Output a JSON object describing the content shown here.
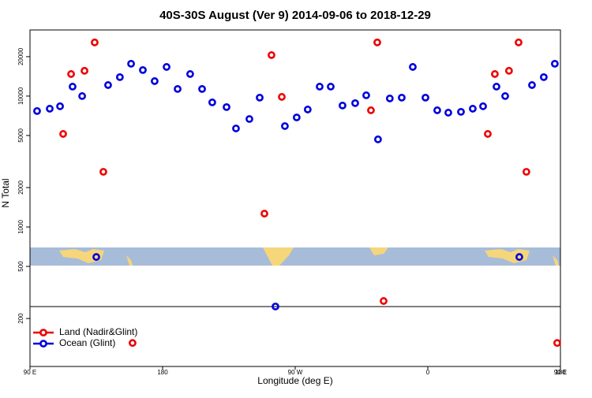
{
  "chart_data": {
    "type": "scatter",
    "title": "40S-30S August (Ver 9)   2014-09-06 to 2018-12-29",
    "xlabel": "Longitude (deg E)",
    "ylabel": "N Total",
    "xlim": [
      90,
      450
    ],
    "ylim": [
      86,
      32000
    ],
    "ylog": true,
    "legend": "bottom-left",
    "xticks": [
      {
        "value": 90,
        "label": "90 E"
      },
      180,
      {
        "value": 270,
        "label": "90 W"
      },
      {
        "value": 360,
        "label": "0"
      },
      {
        "value": 450,
        "label": "90 E"
      },
      {
        "value": 540,
        "label": "180"
      }
    ],
    "yticks": [
      200,
      500,
      1000,
      2000,
      5000,
      10000,
      20000
    ],
    "series": [
      {
        "name": "Land (Nadir&Glint)",
        "color": "#ee0000",
        "x": [
          112.5,
          117.9,
          127,
          133.9,
          139.8,
          159.6,
          249.1,
          253.9,
          260.9,
          321.4,
          325.7,
          330,
          400.7,
          405.5,
          415.1,
          421.6,
          426.9,
          447.8
        ],
        "values": [
          5140,
          14740,
          15600,
          25700,
          2640,
          130,
          1265,
          20560,
          9860,
          7790,
          25700,
          272,
          5140,
          14740,
          15600,
          25700,
          2640,
          130
        ]
      },
      {
        "name": "Ocean (Glint)",
        "color": "#0000dd",
        "x": [
          94.8,
          103.4,
          110.4,
          118.9,
          125.4,
          135,
          143,
          151,
          158.6,
          166.6,
          174.6,
          182.7,
          190.2,
          198.7,
          206.8,
          213.7,
          223.4,
          229.8,
          238.9,
          245.9,
          256.6,
          263,
          271,
          278.5,
          286.6,
          294.1,
          302.1,
          310.7,
          318.2,
          326.2,
          334.2,
          342.3,
          349.8,
          358.4,
          366.4,
          373.9,
          382.5,
          390.5,
          397.5,
          406.6,
          412.5,
          422.1,
          430.7,
          438.7,
          446.2
        ],
        "values": [
          7690,
          8010,
          8360,
          11810,
          10000,
          590,
          12140,
          13950,
          17660,
          15810,
          13010,
          16700,
          11330,
          14740,
          11330,
          8950,
          8240,
          5660,
          6680,
          9730,
          247,
          5900,
          6870,
          7900,
          11810,
          11810,
          8470,
          8830,
          10140,
          4670,
          9590,
          9730,
          16700,
          9730,
          7790,
          7470,
          7580,
          8010,
          8360,
          11810,
          10000,
          590,
          12140,
          13950,
          17660
        ]
      }
    ]
  }
}
